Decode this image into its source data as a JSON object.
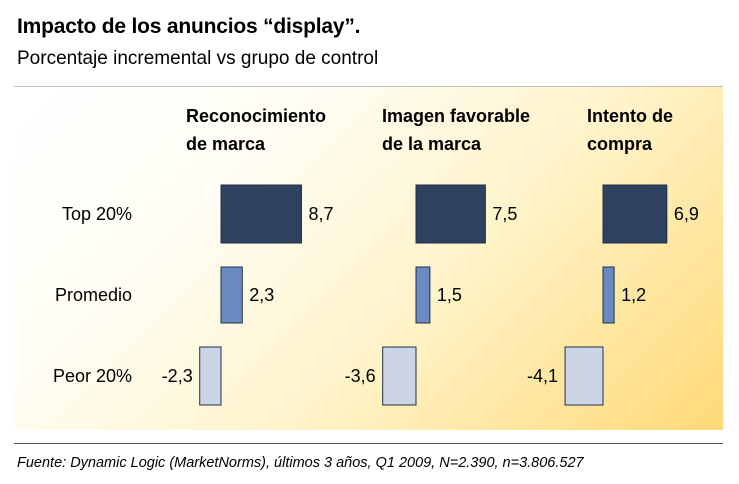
{
  "header": {
    "title": "Impacto de los anuncios “display”.",
    "subtitle": "Porcentaje incremental vs grupo de control"
  },
  "footer": {
    "source": "Fuente: Dynamic Logic (MarketNorms),  últimos 3 años, Q1 2009, N=2.390, n=3.806.527"
  },
  "colors": {
    "top": "#2e4260",
    "avg": "#6a8bc1",
    "worst": "#ccd5e6"
  },
  "chart_data": {
    "type": "bar",
    "orientation": "horizontal",
    "title": "Impacto de los anuncios “display”.",
    "subtitle": "Porcentaje incremental vs grupo de control",
    "categories": [
      "Top 20%",
      "Promedio",
      "Peor 20%"
    ],
    "series": [
      {
        "name": "Reconocimiento de marca",
        "header_lines": [
          "Reconocimiento",
          "de marca"
        ],
        "values": [
          8.7,
          2.3,
          -2.3
        ],
        "labels": [
          "8,7",
          "2,3",
          "-2,3"
        ]
      },
      {
        "name": "Imagen favorable de la marca",
        "header_lines": [
          "Imagen favorable",
          "de la marca"
        ],
        "values": [
          7.5,
          1.5,
          -3.6
        ],
        "labels": [
          "7,5",
          "1,5",
          "-3,6"
        ]
      },
      {
        "name": "Intento de compra",
        "header_lines": [
          "Intento de",
          "compra"
        ],
        "values": [
          6.9,
          1.2,
          -4.1
        ],
        "labels": [
          "6,9",
          "1,2",
          "-4,1"
        ]
      }
    ],
    "xlabel": "",
    "ylabel": ""
  }
}
